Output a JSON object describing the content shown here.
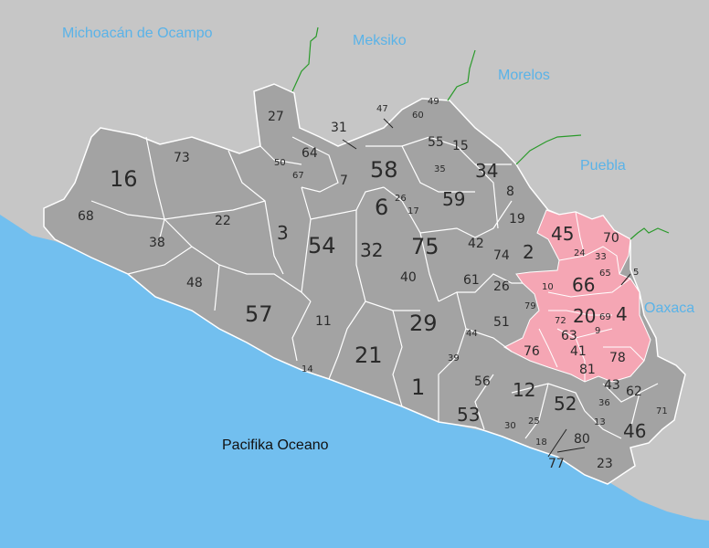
{
  "colors": {
    "land_other": "#c6c6c6",
    "guerrero": "#a3a3a3",
    "highlight": "#f5a6b4",
    "ocean": "#72bfef",
    "border_state": "#2a9a2a",
    "border_muni": "#ffffff",
    "neighbor_text": "#5ab3e8",
    "ocean_text": "#111111"
  },
  "regions": {
    "michoacan": "Michoacán de Ocampo",
    "meksiko": "Meksiko",
    "morelos": "Morelos",
    "puebla": "Puebla",
    "oaxaca": "Oaxaca",
    "ocean": "Pacifika Oceano"
  },
  "municipalities": {
    "m1": "1",
    "m2": "2",
    "m3": "3",
    "m4": "4",
    "m5": "5",
    "m6": "6",
    "m7": "7",
    "m8": "8",
    "m9": "9",
    "m10": "10",
    "m11": "11",
    "m12": "12",
    "m13": "13",
    "m14": "14",
    "m15": "15",
    "m16": "16",
    "m17": "17",
    "m18": "18",
    "m19": "19",
    "m20": "20",
    "m21": "21",
    "m22": "22",
    "m23": "23",
    "m24": "24",
    "m25": "25",
    "m26a": "26",
    "m26b": "26",
    "m27": "27",
    "m29": "29",
    "m30": "30",
    "m31": "31",
    "m32": "32",
    "m33": "33",
    "m34": "34",
    "m35": "35",
    "m36": "36",
    "m38": "38",
    "m39": "39",
    "m40": "40",
    "m41": "41",
    "m42": "42",
    "m43": "43",
    "m44": "44",
    "m45": "45",
    "m46": "46",
    "m47": "47",
    "m48": "48",
    "m49": "49",
    "m50": "50",
    "m51": "51",
    "m52": "52",
    "m53": "53",
    "m54": "54",
    "m55": "55",
    "m56": "56",
    "m57": "57",
    "m58": "58",
    "m59": "59",
    "m60": "60",
    "m61": "61",
    "m62": "62",
    "m63": "63",
    "m64": "64",
    "m65": "65",
    "m66": "66",
    "m67": "67",
    "m68": "68",
    "m69": "69",
    "m70": "70",
    "m71": "71",
    "m72": "72",
    "m73": "73",
    "m74": "74",
    "m75": "75",
    "m76": "76",
    "m77": "77",
    "m78": "78",
    "m79": "79",
    "m80": "80",
    "m81": "81"
  }
}
